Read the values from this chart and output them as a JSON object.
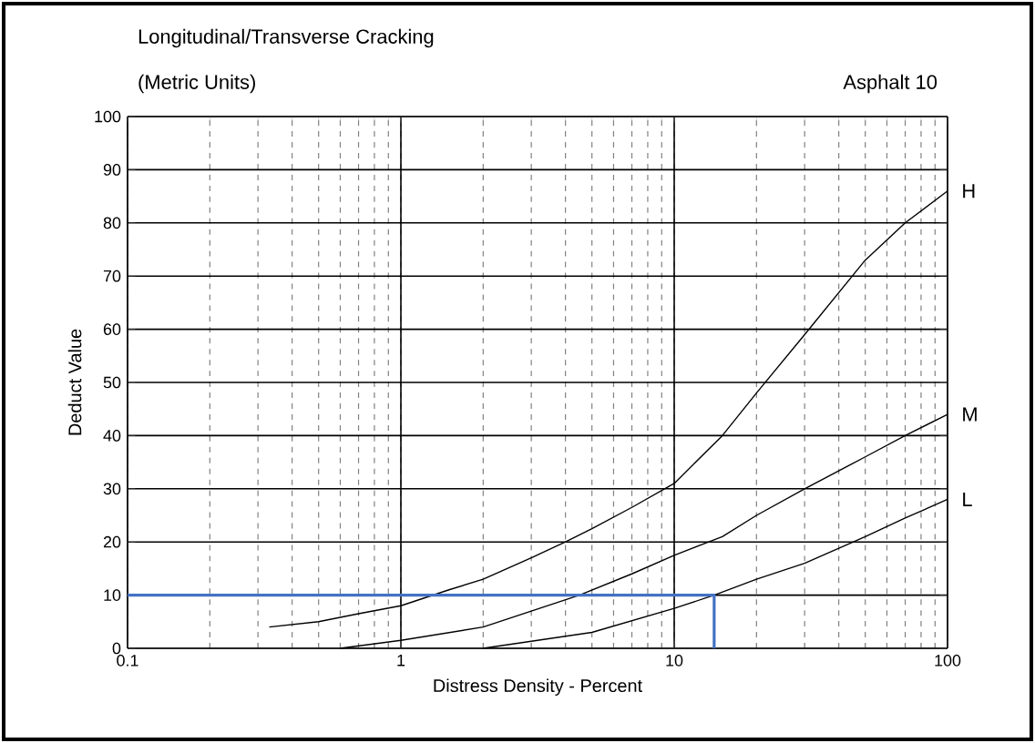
{
  "chart_data": {
    "type": "line",
    "title": "Longitudinal/Transverse Cracking",
    "subtitle": "(Metric Units)",
    "xlabel": "Distress Density - Percent",
    "ylabel": "Deduct Value",
    "annotations": [
      "Asphalt 10"
    ],
    "log": "x",
    "grid": true,
    "legend": false,
    "marker": "none",
    "xlim": [
      0.1,
      100
    ],
    "xticks": [
      {
        "value": 0.1,
        "label": "0.1"
      },
      1,
      10,
      100
    ],
    "ylim": [
      0,
      100
    ],
    "yticks": [
      0,
      10,
      20,
      30,
      40,
      50,
      60,
      70,
      80,
      90,
      100
    ],
    "series": [
      {
        "name": "H",
        "color": "#000000",
        "x": [
          0.33,
          0.5,
          0.7,
          1,
          1.5,
          2,
          3,
          4,
          5,
          7,
          10,
          15,
          20,
          30,
          50,
          70,
          100
        ],
        "values": [
          4,
          5,
          6.5,
          8,
          11,
          13,
          17,
          20,
          22.5,
          26.5,
          31,
          40,
          48,
          59,
          73,
          80,
          86
        ]
      },
      {
        "name": "M",
        "color": "#000000",
        "x": [
          0.6,
          1,
          2,
          3,
          4.5,
          7,
          10,
          15,
          20,
          30,
          50,
          70,
          100
        ],
        "values": [
          0,
          1.5,
          4,
          7,
          10,
          14,
          17.5,
          21,
          25,
          30,
          36,
          40,
          44
        ]
      },
      {
        "name": "L",
        "color": "#000000",
        "x": [
          2,
          5,
          10,
          14,
          20,
          30,
          50,
          70,
          100
        ],
        "values": [
          0,
          3,
          7.5,
          10,
          13,
          16,
          21,
          24.5,
          28
        ]
      },
      {
        "color": "#4472c4",
        "x": [
          0.1,
          14,
          14
        ],
        "values": [
          10,
          10,
          0
        ]
      }
    ]
  }
}
